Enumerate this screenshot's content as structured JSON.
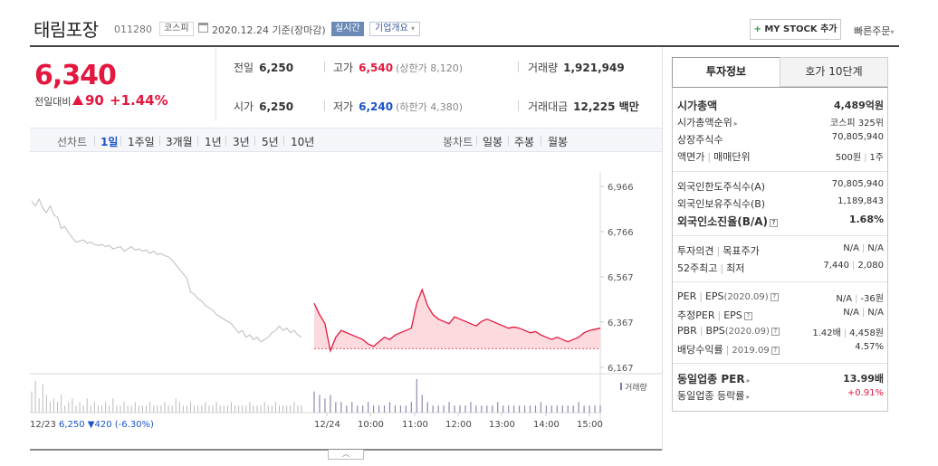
{
  "header": {
    "stock_name": "태림포장",
    "stock_code": "011280",
    "market": "코스피",
    "date_text": "2020.12.24 기준(장마감)",
    "live_badge": "실시간",
    "overview_button": "기업개요",
    "my_stock_plus": "+",
    "my_stock_label": "MY STOCK 추가",
    "quick_order": "빠른주문"
  },
  "summary": {
    "price": "6,340",
    "change_label": "전일대비",
    "change_amount": "90",
    "change_pct": "+1.44%",
    "prev_close_label": "전일",
    "prev_close": "6,250",
    "high_label": "고가",
    "high": "6,540",
    "upper_limit": "(상한가 8,120)",
    "volume_label": "거래량",
    "volume": "1,921,949",
    "open_label": "시가",
    "open": "6,250",
    "low_label": "저가",
    "low": "6,240",
    "lower_limit": "(하한가 4,380)",
    "turnover_label": "거래대금",
    "turnover": "12,225 백만"
  },
  "chart_controls": {
    "line_label": "선차트",
    "line_periods": [
      "1일",
      "1주일",
      "3개월",
      "1년",
      "3년",
      "5년",
      "10년"
    ],
    "selected_period": "1일",
    "candle_label": "봉차트",
    "candle_periods": [
      "일봉",
      "주봉",
      "월봉"
    ]
  },
  "chart_data": {
    "type": "line",
    "y_ticks": [
      "6,966",
      "6,766",
      "6,567",
      "6,367",
      "6,167"
    ],
    "ylim": [
      6167,
      6966
    ],
    "prev_day_label": "12/23",
    "prev_day_summary": "6,250 ▼420 (-6.30%)",
    "x_ticks": [
      "12/24",
      "10:00",
      "11:00",
      "12:00",
      "13:00",
      "14:00",
      "15:00"
    ],
    "volume_legend": "거래량",
    "base_price": 6250,
    "series": [
      {
        "values": [
          6900,
          6880,
          6910,
          6870,
          6850,
          6880,
          6840,
          6830,
          6780,
          6790,
          6760,
          6740,
          6720,
          6725,
          6730,
          6715,
          6720,
          6710,
          6705,
          6710,
          6700,
          6705,
          6690,
          6695,
          6700,
          6680,
          6690,
          6700,
          6685,
          6690,
          6680,
          6685,
          6670,
          6680,
          6665,
          6670,
          6660,
          6655,
          6640,
          6620,
          6600,
          6580,
          6560,
          6500,
          6490,
          6470,
          6460,
          6440,
          6430,
          6420,
          6400,
          6390,
          6380,
          6370,
          6360,
          6340,
          6320,
          6330,
          6300,
          6310,
          6290,
          6300,
          6280,
          6290,
          6300,
          6320,
          6330,
          6350,
          6330,
          6340,
          6320,
          6330,
          6310,
          6300
        ]
      },
      {
        "values": [
          6450,
          6400,
          6360,
          6240,
          6300,
          6330,
          6320,
          6310,
          6300,
          6290,
          6270,
          6260,
          6280,
          6300,
          6290,
          6310,
          6320,
          6330,
          6340,
          6450,
          6510,
          6440,
          6400,
          6380,
          6370,
          6360,
          6390,
          6380,
          6370,
          6360,
          6350,
          6370,
          6380,
          6370,
          6360,
          6350,
          6340,
          6345,
          6340,
          6330,
          6320,
          6325,
          6310,
          6300,
          6290,
          6300,
          6290,
          6280,
          6290,
          6300,
          6320,
          6330,
          6335,
          6340
        ]
      }
    ],
    "volume_prev": [
      0.6,
      0.9,
      0.4,
      0.8,
      0.5,
      0.3,
      0.4,
      0.3,
      0.5,
      0.2,
      0.3,
      0.4,
      0.2,
      0.3,
      0.2,
      0.4,
      0.2,
      0.3,
      0.2,
      0.2,
      0.3,
      0.2,
      0.4,
      0.2,
      0.2,
      0.3,
      0.2,
      0.2,
      0.3,
      0.2,
      0.2,
      0.2,
      0.3,
      0.2,
      0.2,
      0.2,
      0.3,
      0.2,
      0.2,
      0.4,
      0.3,
      0.2,
      0.2,
      0.3,
      0.2,
      0.2,
      0.2,
      0.3,
      0.2,
      0.2,
      0.3,
      0.2,
      0.2,
      0.2,
      0.3,
      0.2,
      0.2,
      0.2,
      0.2,
      0.3,
      0.2,
      0.2,
      0.2,
      0.3,
      0.2,
      0.2,
      0.3,
      0.2,
      0.2,
      0.2,
      0.2,
      0.3,
      0.2,
      0.2
    ],
    "volume_today": [
      0.6,
      0.5,
      0.4,
      0.5,
      0.3,
      0.3,
      0.2,
      0.3,
      0.2,
      0.2,
      0.3,
      0.2,
      0.2,
      0.2,
      0.3,
      0.2,
      0.2,
      0.2,
      0.3,
      0.95,
      0.5,
      0.3,
      0.2,
      0.2,
      0.2,
      0.3,
      0.2,
      0.2,
      0.2,
      0.3,
      0.2,
      0.2,
      0.2,
      0.2,
      0.3,
      0.2,
      0.2,
      0.2,
      0.2,
      0.2,
      0.2,
      0.2,
      0.3,
      0.2,
      0.2,
      0.2,
      0.2,
      0.2,
      0.2,
      0.3,
      0.2,
      0.2,
      0.2,
      0.2
    ],
    "colors": {
      "prev_line": "#c6c6c6",
      "today_line": "#e3183f",
      "today_fill": "#fcdadd",
      "volume_prev": "#bbbbbb",
      "volume_today": "#8a8ab0"
    }
  },
  "right_panel": {
    "tab_active": "투자정보",
    "tab_inactive": "호가 10단계",
    "market_cap_label": "시가총액",
    "market_cap": "4,489억원",
    "market_cap_rank_label": "시가총액순위",
    "market_cap_rank": "코스피 325위",
    "shares_label": "상장주식수",
    "shares": "70,805,940",
    "par_label": "액면가",
    "lot_label": "매매단위",
    "par": "500원",
    "lot": "1주",
    "foreign_limit_label": "외국인한도주식수(A)",
    "foreign_limit": "70,805,940",
    "foreign_hold_label": "외국인보유주식수(B)",
    "foreign_hold": "1,189,843",
    "foreign_ratio_label": "외국인소진율(B/A)",
    "foreign_ratio": "1.68%",
    "opinion_label": "투자의견",
    "target_label": "목표주가",
    "opinion": "N/A",
    "target": "N/A",
    "high52_label": "52주최고",
    "low52_label": "최저",
    "high52": "7,440",
    "low52": "2,080",
    "per_label": "PER",
    "eps_label": "EPS",
    "eps_year": "(2020.09)",
    "per": "N/A",
    "eps": "-36원",
    "est_per_label": "추정PER",
    "est_eps_label": "EPS",
    "est_per": "N/A",
    "est_eps": "N/A",
    "pbr_label": "PBR",
    "bps_label": "BPS",
    "bps_year": "(2020.09)",
    "pbr": "1.42배",
    "bps": "4,458원",
    "dividend_label": "배당수익률",
    "dividend_year": "2019.09",
    "dividend": "4.57%",
    "sector_per_label": "동일업종 PER",
    "sector_per": "13.99배",
    "sector_change_label": "동일업종 등락률",
    "sector_change": "+0.91%"
  }
}
